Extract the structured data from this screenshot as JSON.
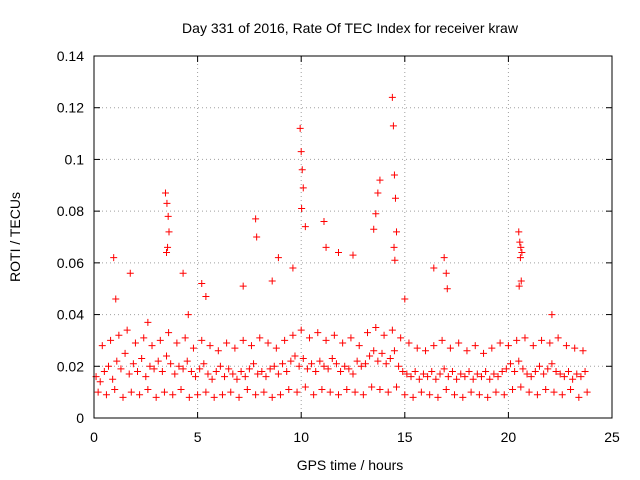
{
  "chart_data": {
    "type": "scatter",
    "title": "Day 331 of 2016, Rate Of TEC Index for receiver kraw",
    "xlabel": "GPS time / hours",
    "ylabel": "ROTI / TECUs",
    "xlim": [
      0,
      25
    ],
    "ylim": [
      0,
      0.14
    ],
    "xticks": [
      0,
      5,
      10,
      15,
      20,
      25
    ],
    "yticks": [
      0,
      0.02,
      0.04,
      0.06,
      0.08,
      0.1,
      0.12,
      0.14
    ],
    "xtick_labels": [
      "0",
      "5",
      "10",
      "15",
      "20",
      "25"
    ],
    "ytick_labels": [
      "0",
      "0.02",
      "0.04",
      "0.06",
      "0.08",
      "0.1",
      "0.12",
      "0.14"
    ],
    "grid": true,
    "marker": "+",
    "color": "#ff0000",
    "series": [
      {
        "name": "ROTI",
        "x": [
          0.1,
          0.3,
          0.5,
          0.7,
          0.9,
          1.1,
          1.3,
          1.5,
          1.7,
          1.9,
          2.1,
          2.3,
          2.5,
          2.7,
          2.9,
          3.1,
          3.3,
          3.5,
          3.7,
          3.9,
          4.1,
          4.3,
          4.5,
          4.7,
          4.9,
          5.1,
          5.3,
          5.5,
          5.7,
          5.9,
          6.1,
          6.3,
          6.5,
          6.7,
          6.9,
          7.1,
          7.3,
          7.5,
          7.7,
          7.9,
          8.1,
          8.3,
          8.5,
          8.7,
          8.9,
          9.1,
          9.3,
          9.5,
          9.7,
          9.9,
          10.1,
          10.3,
          10.5,
          10.7,
          10.9,
          11.1,
          11.3,
          11.5,
          11.7,
          11.9,
          12.1,
          12.3,
          12.5,
          12.7,
          12.9,
          13.1,
          13.3,
          13.5,
          13.7,
          13.9,
          14.1,
          14.3,
          14.5,
          14.7,
          14.9,
          15.1,
          15.3,
          15.5,
          15.7,
          15.9,
          16.1,
          16.3,
          16.5,
          16.7,
          16.9,
          17.1,
          17.3,
          17.5,
          17.7,
          17.9,
          18.1,
          18.3,
          18.5,
          18.7,
          18.9,
          19.1,
          19.3,
          19.5,
          19.7,
          19.9,
          20.1,
          20.3,
          20.5,
          20.7,
          20.9,
          21.1,
          21.3,
          21.5,
          21.7,
          21.9,
          22.1,
          22.3,
          22.5,
          22.7,
          22.9,
          23.1,
          23.3,
          23.5,
          23.7,
          0.2,
          0.6,
          1.0,
          1.4,
          1.8,
          2.2,
          2.6,
          3.0,
          3.4,
          3.8,
          4.2,
          4.6,
          5.0,
          5.4,
          5.8,
          6.2,
          6.6,
          7.0,
          7.4,
          7.8,
          8.2,
          8.6,
          9.0,
          9.4,
          9.8,
          10.2,
          10.6,
          11.0,
          11.4,
          11.8,
          12.2,
          12.6,
          13.0,
          13.4,
          13.8,
          14.2,
          14.6,
          15.0,
          15.4,
          15.8,
          16.2,
          16.6,
          17.0,
          17.4,
          17.8,
          18.2,
          18.6,
          19.0,
          19.4,
          19.8,
          20.2,
          20.6,
          21.0,
          21.4,
          21.8,
          22.2,
          22.6,
          23.0,
          23.4,
          23.8,
          0.4,
          0.8,
          1.2,
          1.6,
          2.0,
          2.4,
          2.8,
          3.2,
          3.6,
          4.0,
          4.4,
          4.8,
          5.2,
          5.6,
          6.0,
          6.4,
          6.8,
          7.2,
          7.6,
          8.0,
          8.4,
          8.8,
          9.2,
          9.6,
          10.0,
          10.4,
          10.8,
          11.2,
          11.6,
          12.0,
          12.4,
          12.8,
          13.2,
          13.6,
          14.0,
          14.4,
          14.8,
          15.2,
          15.6,
          16.0,
          16.4,
          16.8,
          17.2,
          17.6,
          18.0,
          18.4,
          18.8,
          19.2,
          19.6,
          20.0,
          20.4,
          20.8,
          21.2,
          21.6,
          22.0,
          22.4,
          22.8,
          23.2,
          23.6,
          0.95,
          1.05,
          1.75,
          2.6,
          3.45,
          3.52,
          3.58,
          3.62,
          3.55,
          3.5,
          4.3,
          4.55,
          5.2,
          5.4,
          7.2,
          7.8,
          7.85,
          8.6,
          8.9,
          9.6,
          9.95,
          10.0,
          10.05,
          10.1,
          10.02,
          10.2,
          11.1,
          11.2,
          11.8,
          12.5,
          13.5,
          13.6,
          13.7,
          13.8,
          14.4,
          14.45,
          14.5,
          14.55,
          14.6,
          14.48,
          14.52,
          15.0,
          16.4,
          16.9,
          17.0,
          17.05,
          20.5,
          20.55,
          20.6,
          20.65,
          20.58,
          20.62,
          20.52,
          22.1
        ],
        "y": [
          0.016,
          0.014,
          0.018,
          0.02,
          0.015,
          0.022,
          0.019,
          0.025,
          0.017,
          0.021,
          0.018,
          0.023,
          0.016,
          0.02,
          0.019,
          0.022,
          0.018,
          0.024,
          0.021,
          0.017,
          0.02,
          0.019,
          0.022,
          0.018,
          0.016,
          0.019,
          0.021,
          0.017,
          0.015,
          0.018,
          0.02,
          0.016,
          0.019,
          0.017,
          0.015,
          0.018,
          0.016,
          0.019,
          0.021,
          0.017,
          0.018,
          0.016,
          0.019,
          0.02,
          0.017,
          0.021,
          0.018,
          0.022,
          0.024,
          0.02,
          0.023,
          0.019,
          0.021,
          0.018,
          0.022,
          0.02,
          0.019,
          0.023,
          0.021,
          0.018,
          0.02,
          0.019,
          0.017,
          0.022,
          0.02,
          0.021,
          0.024,
          0.026,
          0.022,
          0.025,
          0.021,
          0.023,
          0.026,
          0.02,
          0.018,
          0.017,
          0.016,
          0.018,
          0.015,
          0.017,
          0.016,
          0.018,
          0.015,
          0.017,
          0.019,
          0.016,
          0.018,
          0.015,
          0.017,
          0.016,
          0.018,
          0.015,
          0.017,
          0.016,
          0.018,
          0.015,
          0.017,
          0.016,
          0.018,
          0.019,
          0.021,
          0.018,
          0.022,
          0.019,
          0.017,
          0.016,
          0.018,
          0.02,
          0.017,
          0.019,
          0.021,
          0.018,
          0.017,
          0.016,
          0.018,
          0.015,
          0.017,
          0.016,
          0.018,
          0.01,
          0.009,
          0.011,
          0.008,
          0.01,
          0.009,
          0.011,
          0.008,
          0.01,
          0.009,
          0.011,
          0.008,
          0.009,
          0.01,
          0.008,
          0.009,
          0.01,
          0.008,
          0.011,
          0.009,
          0.01,
          0.008,
          0.009,
          0.011,
          0.01,
          0.012,
          0.009,
          0.011,
          0.01,
          0.009,
          0.011,
          0.01,
          0.009,
          0.012,
          0.011,
          0.01,
          0.012,
          0.009,
          0.008,
          0.01,
          0.009,
          0.008,
          0.011,
          0.009,
          0.008,
          0.01,
          0.009,
          0.008,
          0.01,
          0.009,
          0.011,
          0.012,
          0.01,
          0.009,
          0.011,
          0.01,
          0.009,
          0.011,
          0.008,
          0.01,
          0.028,
          0.03,
          0.032,
          0.034,
          0.029,
          0.031,
          0.028,
          0.03,
          0.033,
          0.029,
          0.031,
          0.027,
          0.03,
          0.028,
          0.026,
          0.029,
          0.027,
          0.03,
          0.028,
          0.031,
          0.029,
          0.027,
          0.03,
          0.032,
          0.034,
          0.031,
          0.033,
          0.03,
          0.032,
          0.029,
          0.031,
          0.028,
          0.033,
          0.035,
          0.032,
          0.034,
          0.031,
          0.029,
          0.027,
          0.026,
          0.028,
          0.03,
          0.027,
          0.029,
          0.026,
          0.028,
          0.025,
          0.027,
          0.029,
          0.028,
          0.03,
          0.031,
          0.028,
          0.03,
          0.029,
          0.031,
          0.028,
          0.027,
          0.026,
          0.062,
          0.046,
          0.056,
          0.037,
          0.087,
          0.083,
          0.078,
          0.072,
          0.066,
          0.064,
          0.056,
          0.04,
          0.052,
          0.047,
          0.051,
          0.077,
          0.07,
          0.053,
          0.062,
          0.058,
          0.112,
          0.103,
          0.096,
          0.089,
          0.081,
          0.074,
          0.076,
          0.066,
          0.064,
          0.063,
          0.073,
          0.079,
          0.087,
          0.092,
          0.124,
          0.113,
          0.094,
          0.085,
          0.072,
          0.066,
          0.061,
          0.046,
          0.058,
          0.062,
          0.056,
          0.05,
          0.072,
          0.068,
          0.066,
          0.064,
          0.062,
          0.053,
          0.051,
          0.04
        ]
      }
    ]
  }
}
